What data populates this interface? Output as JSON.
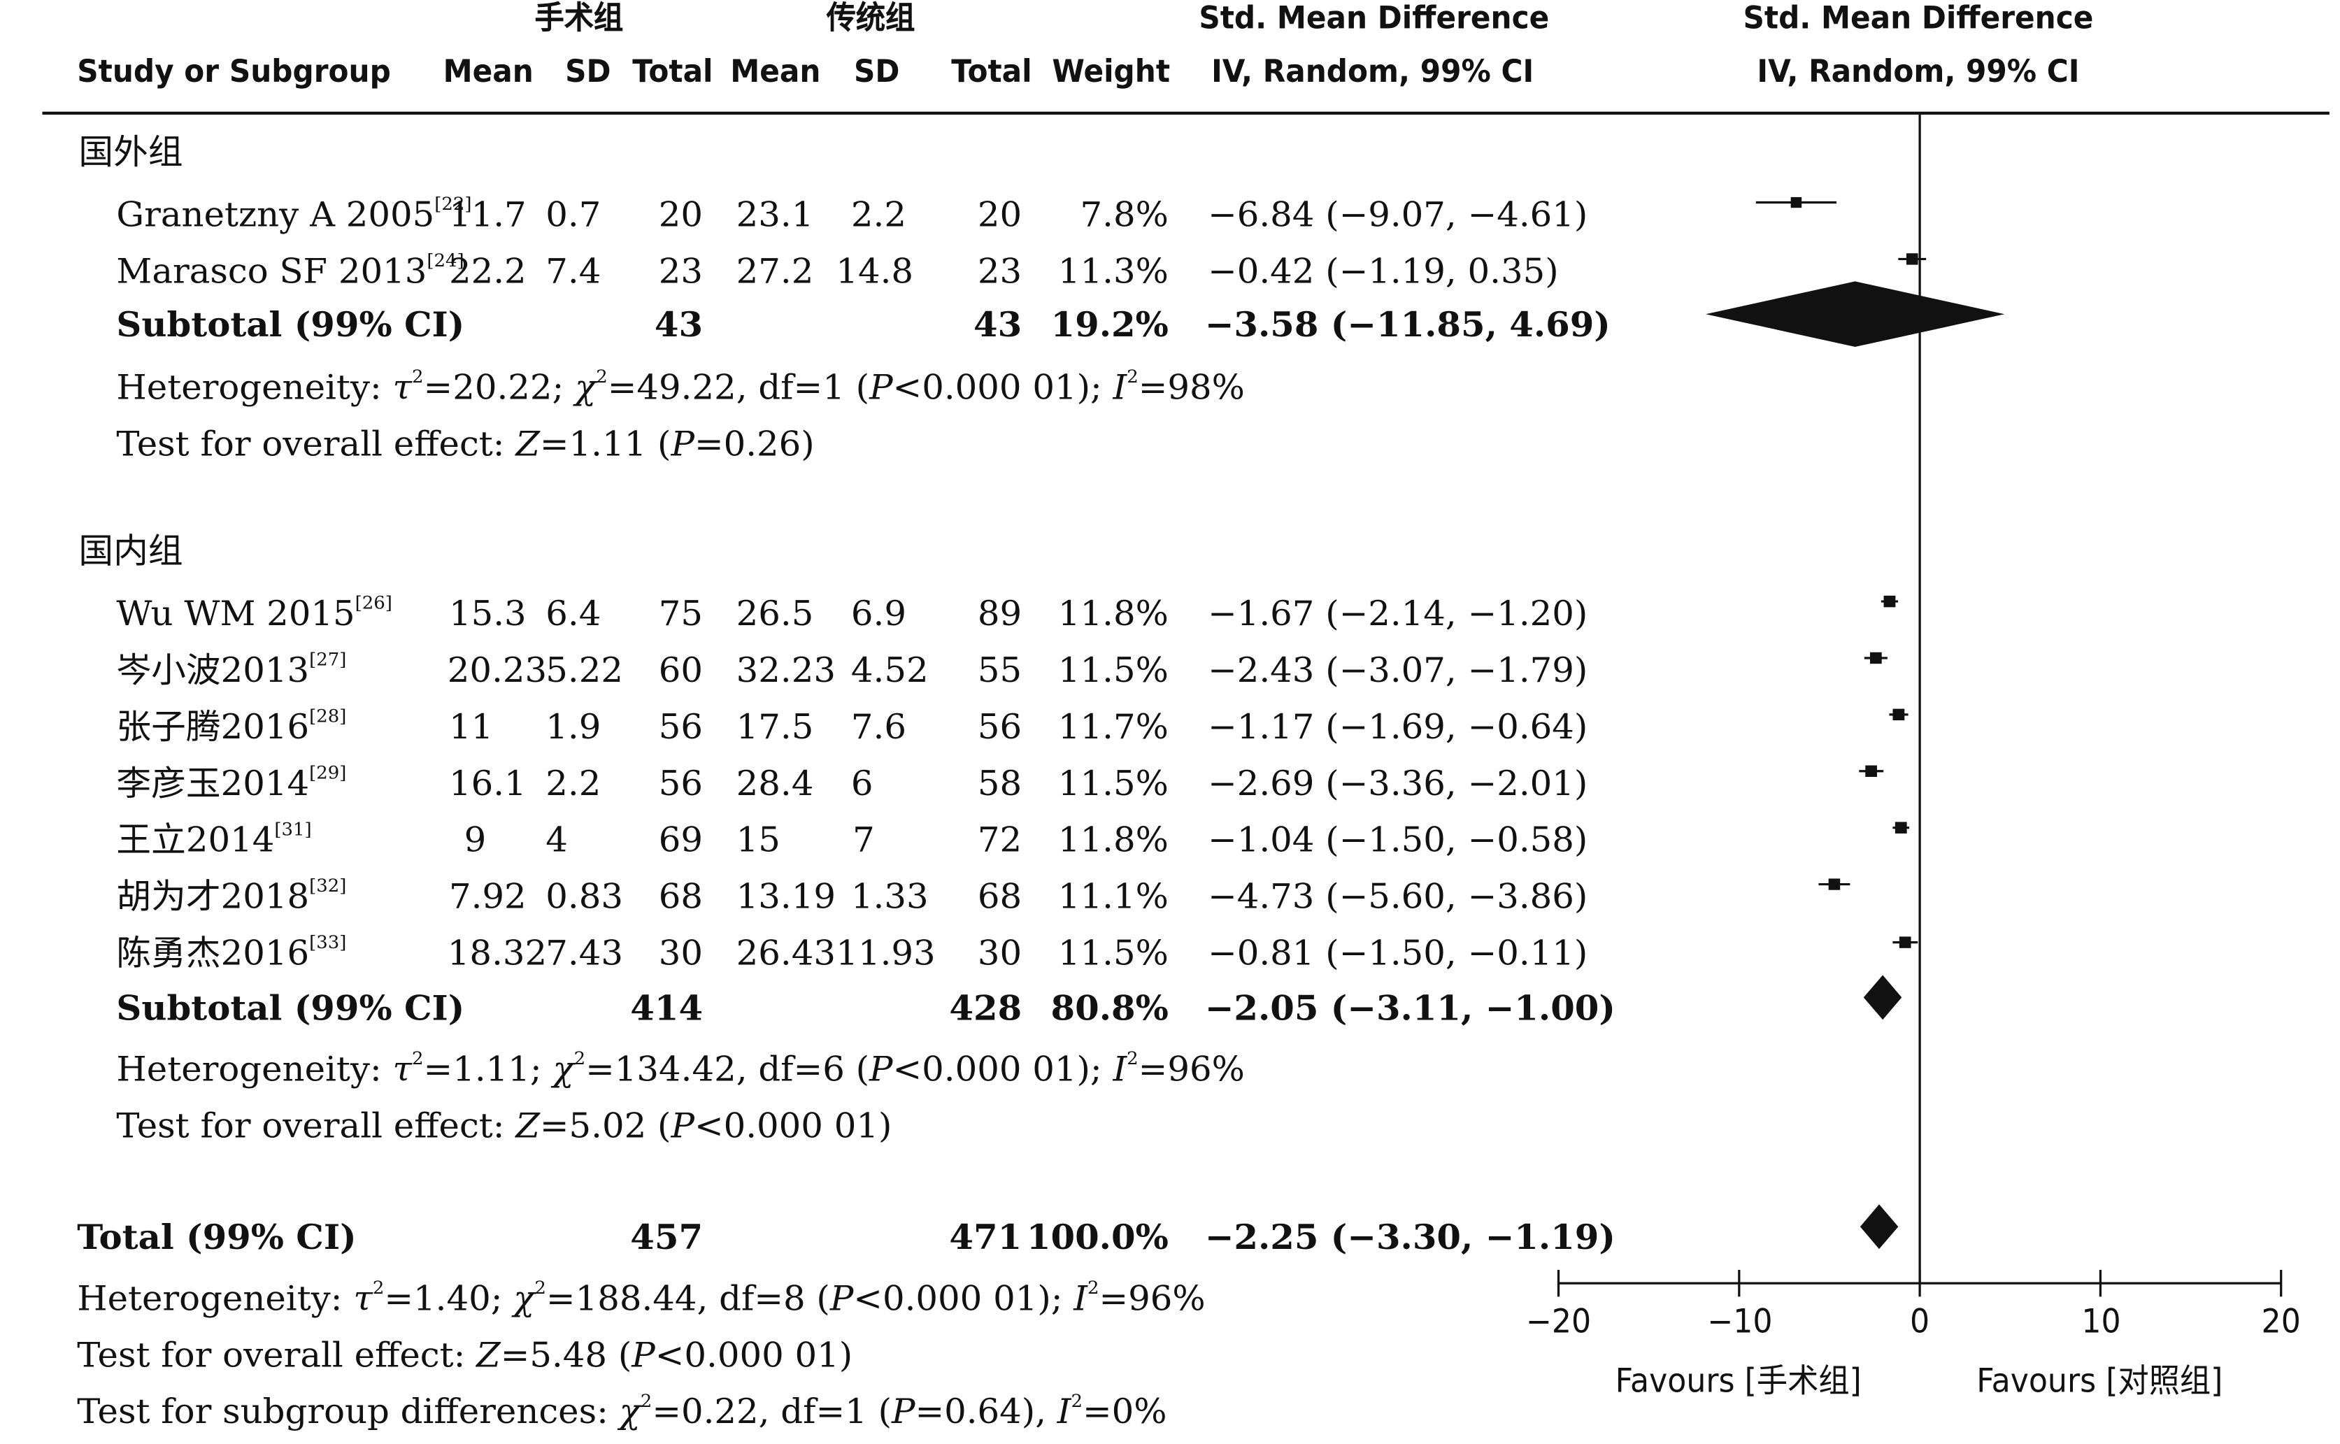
{
  "header": {
    "group1": "手术组",
    "group2": "传统组",
    "study_col": "Study or Subgroup",
    "mean": "Mean",
    "sd": "SD",
    "total": "Total",
    "weight": "Weight",
    "effect_title": "Std. Mean Difference",
    "effect_method": "IV, Random, 99% CI"
  },
  "subgroups": [
    {
      "name": "国外组",
      "studies": [
        {
          "study": "Granetzny A 2005",
          "ref": "[22]",
          "m1": "11.7",
          "sd1": "0.7",
          "n1": "20",
          "m2": "23.1",
          "sd2": "2.2",
          "n2": "20",
          "weight": "7.8%",
          "ci_text": "−6.84 (−9.07, −4.61)"
        },
        {
          "study": "Marasco SF 2013",
          "ref": "[24]",
          "m1": "22.2",
          "sd1": "7.4",
          "n1": "23",
          "m2": "27.2",
          "sd2": "14.8",
          "n2": "23",
          "weight": "11.3%",
          "ci_text": "−0.42 (−1.19, 0.35)"
        }
      ],
      "subtotal": {
        "label": "Subtotal (99% CI)",
        "n1": "43",
        "n2": "43",
        "weight": "19.2%",
        "ci_text": "−3.58 (−11.85, 4.69)"
      },
      "heterogeneity": {
        "prefix": "Heterogeneity: ",
        "tau2": "=20.22; ",
        "chi2": "=49.22, df=1 (",
        "p": "<0.000 01); ",
        "i2": "=98%"
      },
      "overall": {
        "prefix": "Test for overall effect: ",
        "z": "=1.11 (",
        "p": "=0.26)"
      }
    },
    {
      "name": "国内组",
      "studies": [
        {
          "study": "Wu WM 2015",
          "ref": "[26]",
          "m1": "15.3",
          "sd1": "6.4",
          "n1": "75",
          "m2": "26.5",
          "sd2": "6.9",
          "n2": "89",
          "weight": "11.8%",
          "ci_text": "−1.67 (−2.14, −1.20)"
        },
        {
          "study": "岑小波2013",
          "ref": "[27]",
          "m1": "20.23",
          "sd1": "5.22",
          "n1": "60",
          "m2": "32.23",
          "sd2": "4.52",
          "n2": "55",
          "weight": "11.5%",
          "ci_text": "−2.43 (−3.07, −1.79)"
        },
        {
          "study": "张子腾2016",
          "ref": "[28]",
          "m1": "11",
          "sd1": "1.9",
          "n1": "56",
          "m2": "17.5",
          "sd2": "7.6",
          "n2": "56",
          "weight": "11.7%",
          "ci_text": "−1.17 (−1.69, −0.64)"
        },
        {
          "study": "李彦玉2014",
          "ref": "[29]",
          "m1": "16.1",
          "sd1": "2.2",
          "n1": "56",
          "m2": "28.4",
          "sd2": "6",
          "n2": "58",
          "weight": "11.5%",
          "ci_text": "−2.69 (−3.36, −2.01)"
        },
        {
          "study": "王立2014",
          "ref": "[31]",
          "m1": "9",
          "sd1": "4",
          "n1": "69",
          "m2": "15",
          "sd2": "7",
          "n2": "72",
          "weight": "11.8%",
          "ci_text": "−1.04 (−1.50, −0.58)"
        },
        {
          "study": "胡为才2018",
          "ref": "[32]",
          "m1": "7.92",
          "sd1": "0.83",
          "n1": "68",
          "m2": "13.19",
          "sd2": "1.33",
          "n2": "68",
          "weight": "11.1%",
          "ci_text": "−4.73 (−5.60, −3.86)"
        },
        {
          "study": "陈勇杰2016",
          "ref": "[33]",
          "m1": "18.32",
          "sd1": "7.43",
          "n1": "30",
          "m2": "26.43",
          "sd2": "11.93",
          "n2": "30",
          "weight": "11.5%",
          "ci_text": "−0.81 (−1.50, −0.11)"
        }
      ],
      "subtotal": {
        "label": "Subtotal (99% CI)",
        "n1": "414",
        "n2": "428",
        "weight": "80.8%",
        "ci_text": "−2.05 (−3.11, −1.00)"
      },
      "heterogeneity": {
        "prefix": "Heterogeneity: ",
        "tau2": "=1.11; ",
        "chi2": "=134.42, df=6 (",
        "p": "<0.000 01); ",
        "i2": "=96%"
      },
      "overall": {
        "prefix": "Test for overall effect: ",
        "z": "=5.02 (",
        "p": "<0.000 01)"
      }
    }
  ],
  "total": {
    "label": "Total (99% CI)",
    "n1": "457",
    "n2": "471",
    "weight": "100.0%",
    "ci_text": "−2.25 (−3.30, −1.19)",
    "heterogeneity": {
      "prefix": "Heterogeneity: ",
      "tau2": "=1.40; ",
      "chi2": "=188.44, df=8 (",
      "p": "<0.000 01); ",
      "i2": "=96%"
    },
    "overall": {
      "prefix": "Test for overall effect: ",
      "z": "=5.48 (",
      "p": "<0.000 01)"
    },
    "subgroup_diff": {
      "prefix": "Test for subgroup differences: ",
      "chi2": "=0.22, df=1 (",
      "p": "=0.64), ",
      "i2": "=0%"
    }
  },
  "axis": {
    "favours_left": "Favours [手术组]",
    "favours_right": "Favours [对照组]"
  },
  "chart_data": {
    "type": "forest",
    "effect_measure": "Std. Mean Difference, IV, Random, 99% CI",
    "xlim": [
      -20,
      20
    ],
    "xticks": [
      -20,
      -10,
      0,
      10,
      20
    ],
    "xtick_labels": [
      "−20",
      "−10",
      "0",
      "10",
      "20"
    ],
    "color": "#111111",
    "studies": [
      {
        "name": "Granetzny A 2005",
        "est": -6.84,
        "lo": -9.07,
        "hi": -4.61,
        "weight": 7.8
      },
      {
        "name": "Marasco SF 2013",
        "est": -0.42,
        "lo": -1.19,
        "hi": 0.35,
        "weight": 11.3
      },
      {
        "name": "Wu WM 2015",
        "est": -1.67,
        "lo": -2.14,
        "hi": -1.2,
        "weight": 11.8
      },
      {
        "name": "岑小波2013",
        "est": -2.43,
        "lo": -3.07,
        "hi": -1.79,
        "weight": 11.5
      },
      {
        "name": "张子腾2016",
        "est": -1.17,
        "lo": -1.69,
        "hi": -0.64,
        "weight": 11.7
      },
      {
        "name": "李彦玉2014",
        "est": -2.69,
        "lo": -3.36,
        "hi": -2.01,
        "weight": 11.5
      },
      {
        "name": "王立2014",
        "est": -1.04,
        "lo": -1.5,
        "hi": -0.58,
        "weight": 11.8
      },
      {
        "name": "胡为才2018",
        "est": -4.73,
        "lo": -5.6,
        "hi": -3.86,
        "weight": 11.1
      },
      {
        "name": "陈勇杰2016",
        "est": -0.81,
        "lo": -1.5,
        "hi": -0.11,
        "weight": 11.5
      }
    ],
    "diamonds": [
      {
        "name": "国外组 Subtotal",
        "est": -3.58,
        "lo": -11.85,
        "hi": 4.69
      },
      {
        "name": "国内组 Subtotal",
        "est": -2.05,
        "lo": -3.11,
        "hi": -1.0
      },
      {
        "name": "Total",
        "est": -2.25,
        "lo": -3.3,
        "hi": -1.19
      }
    ]
  }
}
